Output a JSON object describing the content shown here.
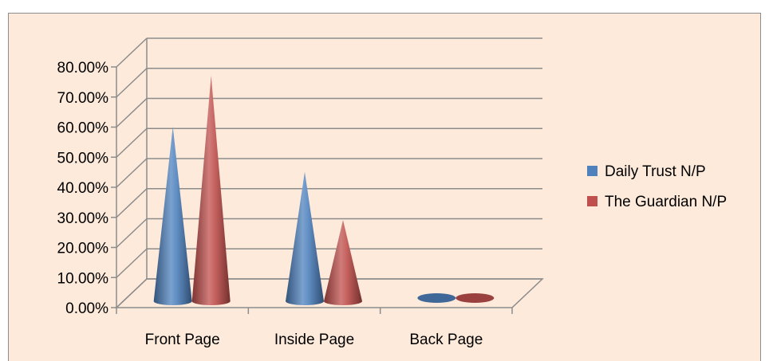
{
  "chart_data": {
    "type": "bar",
    "style": "3d-cone",
    "categories": [
      "Front Page",
      "Inside Page",
      "Back Page"
    ],
    "series": [
      {
        "name": "Daily Trust N/P",
        "values": [
          0.58,
          0.43,
          0.0
        ],
        "color": "#4f81bd"
      },
      {
        "name": "The Guardian N/P",
        "values": [
          0.75,
          0.27,
          0.0
        ],
        "color": "#c0504d"
      }
    ],
    "y_ticks": [
      "0.00%",
      "10.00%",
      "20.00%",
      "30.00%",
      "40.00%",
      "50.00%",
      "60.00%",
      "70.00%",
      "80.00%"
    ],
    "ylim": [
      0,
      0.8
    ],
    "title": "",
    "xlabel": "",
    "ylabel": "",
    "grid": true,
    "legend_position": "right",
    "background_color": "#fdeada"
  }
}
